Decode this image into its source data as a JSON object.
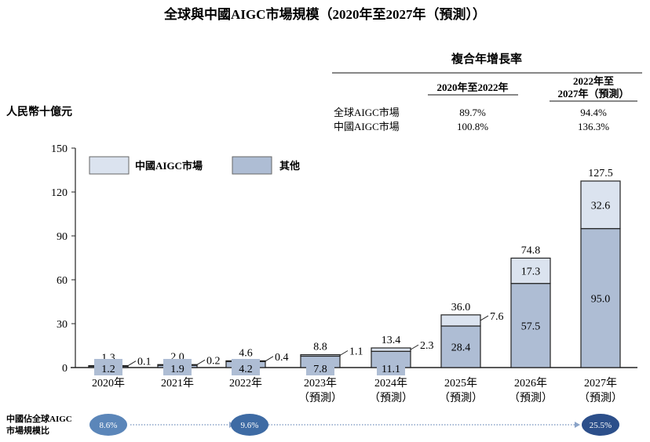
{
  "chart_data": {
    "type": "bar",
    "stacked": true,
    "title": "全球與中國AIGC市場規模（2020年至2027年（預測））",
    "ylabel": "人民幣十億元",
    "ylim": [
      0,
      150
    ],
    "yticks": [
      0,
      30,
      60,
      90,
      120,
      150
    ],
    "grid": false,
    "legend_position": "top-left",
    "categories": [
      [
        "2020年"
      ],
      [
        "2021年"
      ],
      [
        "2022年"
      ],
      [
        "2023年",
        "（預測）"
      ],
      [
        "2024年",
        "（預測）"
      ],
      [
        "2025年",
        "（預測）"
      ],
      [
        "2026年",
        "（預測）"
      ],
      [
        "2027年",
        "（預測）"
      ]
    ],
    "series": [
      {
        "name": "其他",
        "color": "#aebdd4",
        "values": [
          1.2,
          1.9,
          4.2,
          7.8,
          11.1,
          28.4,
          57.5,
          95.0
        ],
        "labels": [
          "1.2",
          "1.9",
          "4.2",
          "7.8",
          "11.1",
          "28.4",
          "57.5",
          "95.0"
        ]
      },
      {
        "name": "中國AIGC市場",
        "color": "#dbe3ef",
        "values": [
          0.1,
          0.2,
          0.4,
          1.1,
          2.3,
          7.6,
          17.3,
          32.6
        ],
        "labels": [
          "0.1",
          "0.2",
          "0.4",
          "1.1",
          "2.3",
          "7.6",
          "17.3",
          "32.6"
        ]
      }
    ],
    "totals": [
      1.3,
      2.0,
      4.6,
      8.8,
      13.4,
      36.0,
      74.8,
      127.5
    ],
    "total_labels": [
      "1.3",
      "2.0",
      "4.6",
      "8.8",
      "13.4",
      "36.0",
      "74.8",
      "127.5"
    ]
  },
  "cagr_table": {
    "title": "複合年增長率",
    "headers": [
      "2020年至2022年",
      "2022年至",
      "2027年（預測）"
    ],
    "rows": [
      {
        "label": "全球AIGC市場",
        "v1": "89.7%",
        "v2": "94.4%"
      },
      {
        "label": "中國AIGC市場",
        "v1": "100.8%",
        "v2": "136.3%"
      }
    ]
  },
  "share_row": {
    "label_line1": "中國佔全球AIGC",
    "label_line2": "市場規模比",
    "items": [
      {
        "value": "8.6%",
        "year": "2020年",
        "color": "#5b86b9"
      },
      {
        "value": "9.6%",
        "year": "2022年",
        "color": "#3e6ba4"
      },
      {
        "value": "25.5%",
        "year": "2027年",
        "color": "#2c4f8a"
      }
    ]
  }
}
